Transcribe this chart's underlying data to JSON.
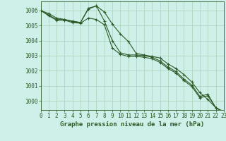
{
  "title": "Graphe pression niveau de la mer (hPa)",
  "background_color": "#cef0e8",
  "plot_bg_color": "#cef0e8",
  "line_color": "#2d5a27",
  "grid_color": "#aacfba",
  "text_color": "#2d5a27",
  "ylim": [
    999.4,
    1006.6
  ],
  "xlim": [
    0,
    23
  ],
  "yticks": [
    1000,
    1001,
    1002,
    1003,
    1004,
    1005,
    1006
  ],
  "xticks": [
    0,
    1,
    2,
    3,
    4,
    5,
    6,
    7,
    8,
    9,
    10,
    11,
    12,
    13,
    14,
    15,
    16,
    17,
    18,
    19,
    20,
    21,
    22,
    23
  ],
  "series": [
    [
      1006.0,
      1005.8,
      1005.5,
      1005.4,
      1005.3,
      1005.2,
      1006.15,
      1006.3,
      1005.9,
      1005.1,
      1004.45,
      1003.95,
      1003.15,
      1003.05,
      1002.95,
      1002.85,
      1002.45,
      1002.15,
      1001.75,
      1001.25,
      1000.55,
      1000.1,
      999.55,
      999.3
    ],
    [
      1006.0,
      1005.7,
      1005.4,
      1005.4,
      1005.25,
      1005.2,
      1006.1,
      1006.3,
      1005.3,
      1004.0,
      1003.2,
      1003.05,
      1003.05,
      1003.0,
      1002.9,
      1002.65,
      1002.25,
      1001.95,
      1001.45,
      1001.05,
      1000.3,
      1000.45,
      999.55,
      999.25
    ],
    [
      1006.0,
      1005.65,
      1005.35,
      1005.35,
      1005.2,
      1005.15,
      1005.5,
      1005.4,
      1005.05,
      1003.5,
      1003.1,
      1002.95,
      1002.95,
      1002.9,
      1002.8,
      1002.55,
      1002.15,
      1001.85,
      1001.35,
      1000.95,
      1000.2,
      1000.35,
      999.55,
      999.2
    ]
  ],
  "marker": "+",
  "markersize": 3.5,
  "linewidth": 0.8,
  "title_fontsize": 6.5,
  "tick_fontsize": 5.5,
  "figwidth": 3.2,
  "figheight": 2.0,
  "dpi": 100
}
